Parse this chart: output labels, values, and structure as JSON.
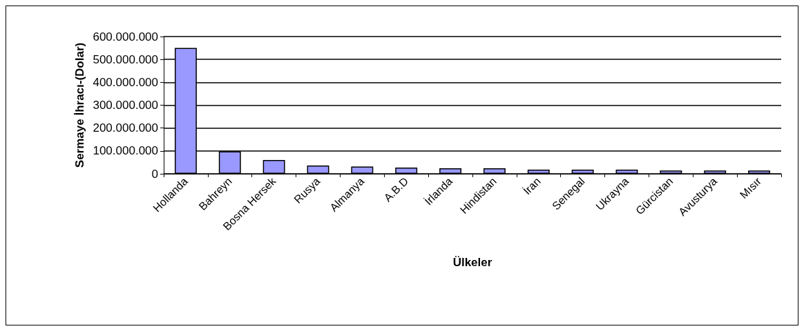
{
  "chart_data": {
    "type": "bar",
    "xlabel": "Ülkeler",
    "ylabel": "Sermaye İhracı-(Dolar)",
    "categories": [
      "Hollanda",
      "Bahreyn",
      "Bosna Hersek",
      "Rusya",
      "Almanya",
      "A.B.D",
      "İrlanda",
      "Hindistan",
      "İran",
      "Senegal",
      "Ukrayna",
      "Gürcistan",
      "Avusturya",
      "Mısır"
    ],
    "values": [
      550000000,
      98000000,
      60000000,
      36000000,
      32000000,
      27000000,
      24000000,
      24000000,
      18000000,
      18000000,
      18000000,
      14000000,
      14000000,
      14000000
    ],
    "color": "#9999ff",
    "ylim": [
      0,
      600000000
    ],
    "yticks": [
      {
        "value": 0,
        "label": "0"
      },
      {
        "value": 100000000,
        "label": "100.000.000"
      },
      {
        "value": 200000000,
        "label": "200.000.000"
      },
      {
        "value": 300000000,
        "label": "300.000.000"
      },
      {
        "value": 400000000,
        "label": "400.000.000"
      },
      {
        "value": 500000000,
        "label": "500.000.000"
      },
      {
        "value": 600000000,
        "label": "600.000.000"
      }
    ],
    "grid": "y"
  }
}
